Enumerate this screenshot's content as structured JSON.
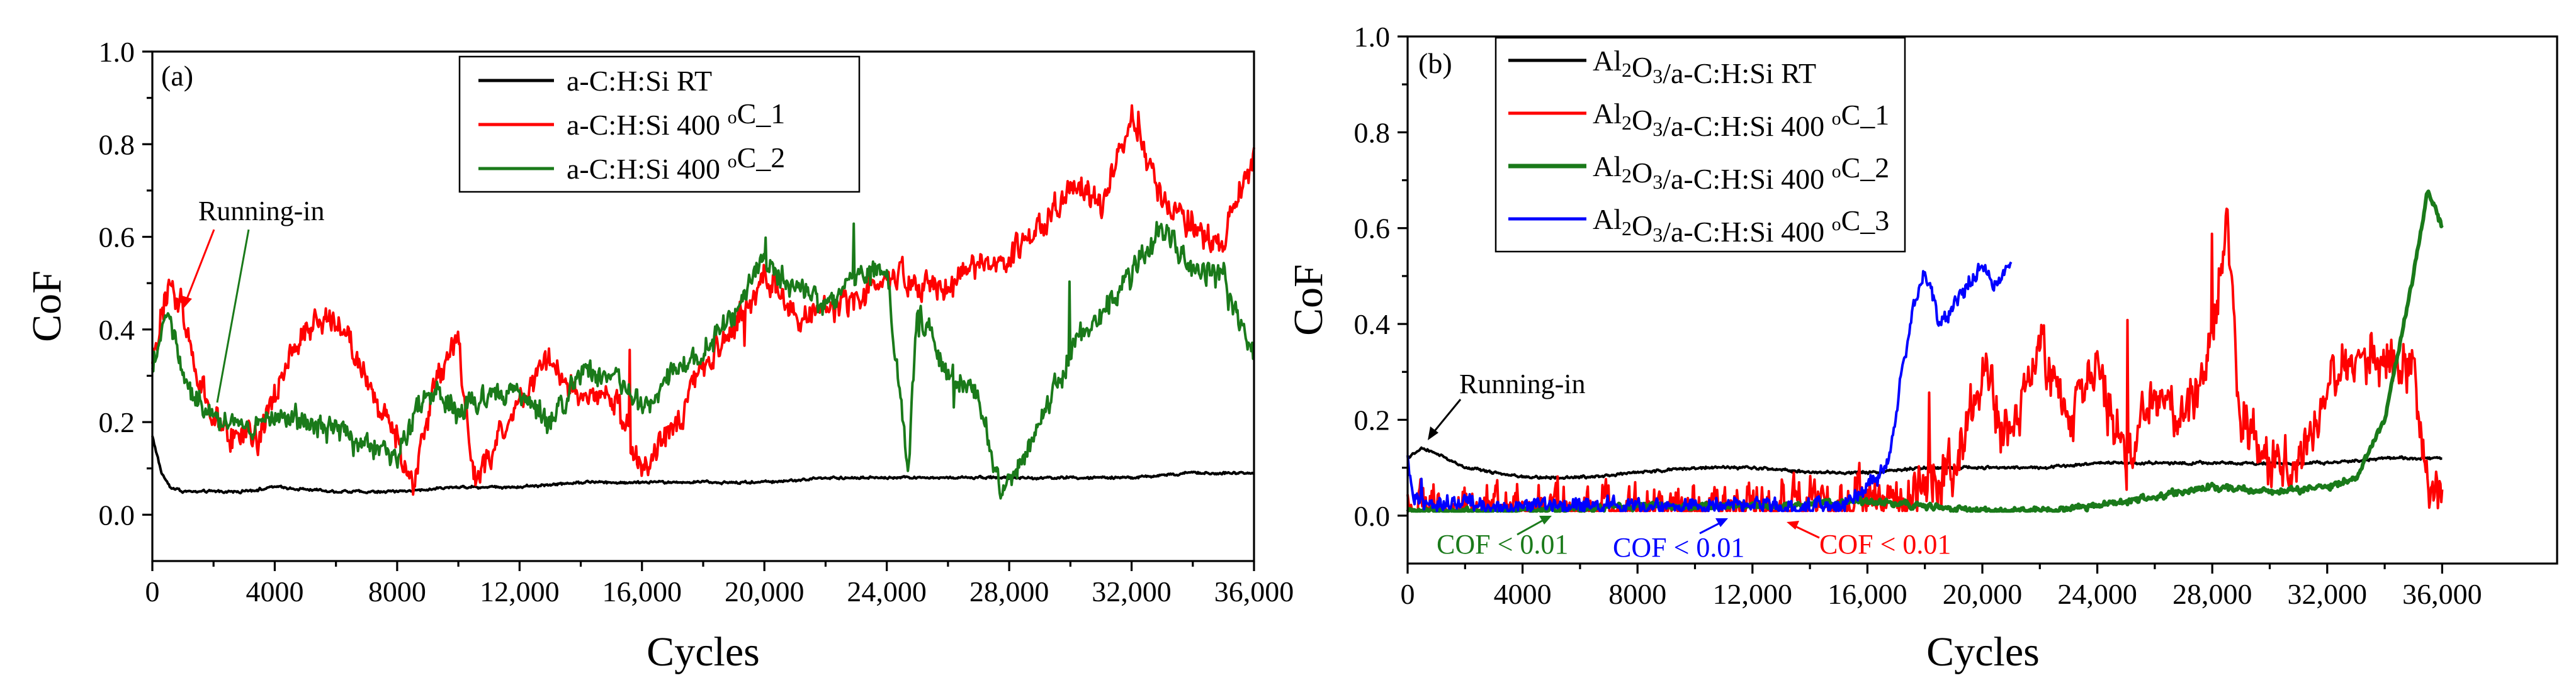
{
  "chart_data": [
    {
      "type": "line",
      "panel_label": "(a)",
      "xlabel": "Cycles",
      "ylabel": "CoF",
      "xlim": [
        0,
        36000
      ],
      "ylim": [
        -0.1,
        1.0
      ],
      "x_ticks": [
        0,
        4000,
        8000,
        12000,
        16000,
        20000,
        24000,
        28000,
        32000,
        36000
      ],
      "x_tick_labels": [
        "0",
        "4000",
        "8000",
        "12,000",
        "16,000",
        "20,000",
        "24,000",
        "28,000",
        "32,000",
        "36,000"
      ],
      "y_ticks": [
        0.0,
        0.2,
        0.4,
        0.6,
        0.8,
        1.0
      ],
      "y_tick_labels": [
        "0.0",
        "0.2",
        "0.4",
        "0.6",
        "0.8",
        "1.0"
      ],
      "legend_position": "top-center",
      "series": [
        {
          "name": "a-C:H:Si  RT",
          "color": "#000000",
          "legend_parts": [
            {
              "t": "a-C:H:Si  RT"
            }
          ],
          "x": [
            0,
            300,
            600,
            1000,
            1500,
            2000,
            3000,
            4000,
            6000,
            8000,
            10000,
            12000,
            14000,
            16000,
            18000,
            20000,
            22000,
            24000,
            26000,
            28000,
            30000,
            32000,
            34000,
            36000
          ],
          "values": [
            0.17,
            0.09,
            0.06,
            0.05,
            0.05,
            0.05,
            0.05,
            0.06,
            0.05,
            0.05,
            0.06,
            0.06,
            0.07,
            0.07,
            0.07,
            0.07,
            0.08,
            0.08,
            0.08,
            0.08,
            0.08,
            0.08,
            0.09,
            0.09
          ],
          "noise": 0.004
        },
        {
          "name": "a-C:H:Si  400 °C_1",
          "color": "#ff0000",
          "legend_parts": [
            {
              "t": "a-C:H:Si  400 "
            },
            {
              "t": "o",
              "sup": true
            },
            {
              "t": "C_1"
            }
          ],
          "x": [
            0,
            500,
            1000,
            1500,
            2500,
            3500,
            4200,
            5000,
            6000,
            7000,
            8000,
            8500,
            9200,
            10000,
            10500,
            11000,
            12000,
            13000,
            14000,
            15000,
            16000,
            17000,
            18000,
            19000,
            20000,
            21000,
            22000,
            23000,
            24000,
            25000,
            26000,
            27000,
            28000,
            29000,
            30000,
            31000,
            32000,
            33000,
            34000,
            35000,
            36000
          ],
          "values": [
            0.33,
            0.49,
            0.45,
            0.28,
            0.17,
            0.16,
            0.3,
            0.4,
            0.43,
            0.28,
            0.18,
            0.05,
            0.28,
            0.38,
            0.07,
            0.12,
            0.26,
            0.33,
            0.24,
            0.26,
            0.1,
            0.18,
            0.32,
            0.4,
            0.52,
            0.43,
            0.45,
            0.46,
            0.52,
            0.5,
            0.49,
            0.53,
            0.55,
            0.62,
            0.72,
            0.66,
            0.87,
            0.68,
            0.62,
            0.58,
            0.78
          ],
          "noise": 0.045
        },
        {
          "name": "a-C:H:Si  400 °C_2",
          "color": "#1a7a1a",
          "legend_parts": [
            {
              "t": "a-C:H:Si  400 "
            },
            {
              "t": "o",
              "sup": true
            },
            {
              "t": "C_2"
            }
          ],
          "x": [
            0,
            500,
            1000,
            1500,
            2000,
            3000,
            4000,
            5000,
            6000,
            7000,
            8000,
            9000,
            10000,
            11000,
            12000,
            13000,
            14000,
            15000,
            16000,
            17000,
            18000,
            19000,
            20000,
            21000,
            22000,
            23000,
            24000,
            24700,
            25000,
            26000,
            27000,
            27700,
            28000,
            29000,
            30000,
            31000,
            32000,
            33000,
            34000,
            35000,
            36000
          ],
          "values": [
            0.3,
            0.45,
            0.3,
            0.25,
            0.21,
            0.18,
            0.21,
            0.2,
            0.19,
            0.15,
            0.13,
            0.27,
            0.23,
            0.26,
            0.27,
            0.2,
            0.31,
            0.3,
            0.22,
            0.3,
            0.35,
            0.43,
            0.55,
            0.5,
            0.45,
            0.52,
            0.52,
            0.1,
            0.44,
            0.31,
            0.26,
            0.04,
            0.07,
            0.2,
            0.35,
            0.44,
            0.52,
            0.62,
            0.53,
            0.51,
            0.34
          ],
          "noise": 0.04
        }
      ],
      "annotations": [
        {
          "text": "Running-in",
          "color": "#000000"
        }
      ]
    },
    {
      "type": "line",
      "panel_label": "(b)",
      "xlabel": "Cycles",
      "ylabel": "CoF",
      "xlim": [
        0,
        40000
      ],
      "ylim": [
        -0.1,
        1.0
      ],
      "x_ticks": [
        0,
        4000,
        8000,
        12000,
        16000,
        20000,
        24000,
        28000,
        32000,
        36000
      ],
      "x_tick_labels": [
        "0",
        "4000",
        "8000",
        "12,000",
        "16,000",
        "20,000",
        "24,000",
        "28,000",
        "32,000",
        "36,000"
      ],
      "y_ticks": [
        0.0,
        0.2,
        0.4,
        0.6,
        0.8,
        1.0
      ],
      "y_tick_labels": [
        "0.0",
        "0.2",
        "0.4",
        "0.6",
        "0.8",
        "1.0"
      ],
      "legend_position": "top-left",
      "series": [
        {
          "name": "Al2O3/a-C:H:Si  RT",
          "color": "#000000",
          "legend_parts": [
            {
              "t": "Al"
            },
            {
              "t": "2",
              "sub": true
            },
            {
              "t": "O"
            },
            {
              "t": "3",
              "sub": true
            },
            {
              "t": "/a-C:H:Si  RT"
            }
          ],
          "x": [
            0,
            500,
            1000,
            2000,
            3000,
            4000,
            6000,
            8000,
            10000,
            12000,
            14000,
            16000,
            18000,
            20000,
            22000,
            24000,
            26000,
            28000,
            30000,
            32000,
            34000,
            36000
          ],
          "values": [
            0.12,
            0.14,
            0.13,
            0.1,
            0.09,
            0.08,
            0.08,
            0.09,
            0.1,
            0.1,
            0.09,
            0.09,
            0.1,
            0.1,
            0.1,
            0.11,
            0.11,
            0.11,
            0.11,
            0.11,
            0.12,
            0.12
          ],
          "noise": 0.004
        },
        {
          "name": "Al2O3/a-C:H:Si 400 °C_1",
          "color": "#ff0000",
          "legend_parts": [
            {
              "t": "Al"
            },
            {
              "t": "2",
              "sub": true
            },
            {
              "t": "O"
            },
            {
              "t": "3",
              "sub": true
            },
            {
              "t": "/a-C:H:Si 400 "
            },
            {
              "t": "o",
              "sup": true
            },
            {
              "t": "C_1"
            }
          ],
          "x": [
            0,
            4000,
            8000,
            12000,
            14000,
            15000,
            16000,
            17000,
            18000,
            19000,
            20000,
            21000,
            22000,
            23000,
            24000,
            25000,
            26000,
            27000,
            28000,
            28500,
            29000,
            30000,
            31000,
            32000,
            33000,
            34000,
            35000,
            35500,
            36000
          ],
          "values": [
            0.01,
            0.01,
            0.01,
            0.02,
            0.02,
            0.03,
            0.05,
            0.03,
            0.06,
            0.1,
            0.3,
            0.15,
            0.35,
            0.2,
            0.3,
            0.1,
            0.25,
            0.2,
            0.35,
            0.62,
            0.2,
            0.1,
            0.12,
            0.28,
            0.33,
            0.32,
            0.3,
            0.06,
            0.05
          ],
          "noise": 0.08
        },
        {
          "name": "Al2O3/a-C:H:Si 400 °C_2",
          "color": "#1a7a1a",
          "legend_parts": [
            {
              "t": "Al"
            },
            {
              "t": "2",
              "sub": true
            },
            {
              "t": "O"
            },
            {
              "t": "3",
              "sub": true
            },
            {
              "t": "/a-C:H:Si 400 "
            },
            {
              "t": "o",
              "sup": true
            },
            {
              "t": "C_2"
            }
          ],
          "x": [
            0,
            4000,
            8000,
            12000,
            16000,
            20000,
            22000,
            24000,
            26000,
            28000,
            30000,
            32000,
            33000,
            34000,
            35000,
            35500,
            36000
          ],
          "values": [
            0.01,
            0.01,
            0.02,
            0.02,
            0.03,
            0.01,
            0.01,
            0.02,
            0.04,
            0.06,
            0.05,
            0.06,
            0.08,
            0.2,
            0.5,
            0.68,
            0.6
          ],
          "noise": 0.01
        },
        {
          "name": "Al2O3/a-C:H:Si 400 °C_3",
          "color": "#0000ff",
          "legend_parts": [
            {
              "t": "Al"
            },
            {
              "t": "2",
              "sub": true
            },
            {
              "t": "O"
            },
            {
              "t": "3",
              "sub": true
            },
            {
              "t": "/a-C:H:Si 400 "
            },
            {
              "t": "o",
              "sup": true
            },
            {
              "t": "C_3"
            }
          ],
          "x": [
            0,
            200,
            1000,
            2000,
            3000,
            4000,
            8000,
            12000,
            15000,
            16000,
            16800,
            17200,
            17600,
            18000,
            18500,
            19000,
            19500,
            20000,
            20500,
            21000
          ],
          "values": [
            0.12,
            0.04,
            0.02,
            0.03,
            0.01,
            0.02,
            0.02,
            0.02,
            0.02,
            0.06,
            0.12,
            0.3,
            0.43,
            0.52,
            0.4,
            0.44,
            0.48,
            0.52,
            0.48,
            0.53
          ],
          "noise": 0.025
        }
      ],
      "annotations": [
        {
          "text": "Running-in",
          "color": "#000000"
        },
        {
          "text": "COF < 0.01",
          "color": "#1a7a1a"
        },
        {
          "text": "COF < 0.01",
          "color": "#0000ff"
        },
        {
          "text": "COF < 0.01",
          "color": "#ff0000"
        }
      ]
    }
  ]
}
